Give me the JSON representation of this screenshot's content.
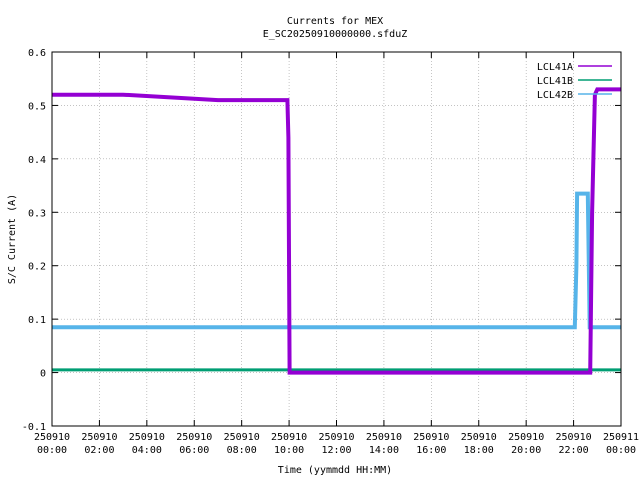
{
  "chart_data": {
    "type": "line",
    "title": "Currents for MEX",
    "subtitle": "E_SC20250910000000.sfduZ",
    "xlabel": "Time (yymmdd HH:MM)",
    "ylabel": "S/C Current (A)",
    "ylim": [
      -0.1,
      0.6
    ],
    "xlim_hours": [
      0,
      24
    ],
    "yticks": [
      "-0.1",
      "0",
      "0.1",
      "0.2",
      "0.3",
      "0.4",
      "0.5",
      "0.6"
    ],
    "xticks": [
      {
        "date": "250910",
        "time": "00:00"
      },
      {
        "date": "250910",
        "time": "02:00"
      },
      {
        "date": "250910",
        "time": "04:00"
      },
      {
        "date": "250910",
        "time": "06:00"
      },
      {
        "date": "250910",
        "time": "08:00"
      },
      {
        "date": "250910",
        "time": "10:00"
      },
      {
        "date": "250910",
        "time": "12:00"
      },
      {
        "date": "250910",
        "time": "14:00"
      },
      {
        "date": "250910",
        "time": "16:00"
      },
      {
        "date": "250910",
        "time": "18:00"
      },
      {
        "date": "250910",
        "time": "20:00"
      },
      {
        "date": "250910",
        "time": "22:00"
      },
      {
        "date": "250911",
        "time": "00:00"
      }
    ],
    "grid": true,
    "legend_position": "top-right",
    "series": [
      {
        "name": "LCL41A",
        "color": "#9400d3",
        "x": [
          0,
          3,
          7,
          9.8,
          9.93,
          9.97,
          10.02,
          10.1,
          22.7,
          22.78,
          22.9,
          23.0,
          24
        ],
        "y": [
          0.52,
          0.52,
          0.51,
          0.51,
          0.51,
          0.44,
          0.0,
          0.0,
          0.0,
          0.3,
          0.52,
          0.53,
          0.53
        ]
      },
      {
        "name": "LCL41B",
        "color": "#009e73",
        "x": [
          0,
          24
        ],
        "y": [
          0.005,
          0.005
        ]
      },
      {
        "name": "LCL42B",
        "color": "#56b4e9",
        "x": [
          0,
          22.05,
          22.12,
          22.15,
          22.6,
          22.68,
          24
        ],
        "y": [
          0.085,
          0.085,
          0.2,
          0.335,
          0.335,
          0.085,
          0.085
        ]
      }
    ]
  }
}
